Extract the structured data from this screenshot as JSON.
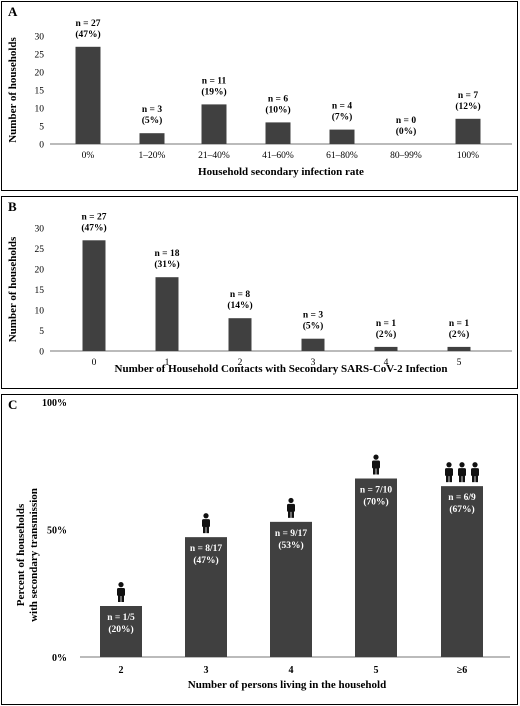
{
  "panels": [
    {
      "label": "A"
    },
    {
      "label": "B"
    },
    {
      "label": "C"
    }
  ],
  "chart_data": [
    {
      "type": "bar",
      "panel": "A",
      "categories": [
        "0%",
        "1–20%",
        "21–40%",
        "41–60%",
        "61–80%",
        "80–99%",
        "100%"
      ],
      "values": [
        27,
        3,
        11,
        6,
        4,
        0,
        7
      ],
      "data_labels": [
        [
          "n = 27",
          "(47%)"
        ],
        [
          "n = 3",
          "(5%)"
        ],
        [
          "n = 11",
          "(19%)"
        ],
        [
          "n = 6",
          "(10%)"
        ],
        [
          "n = 4",
          "(7%)"
        ],
        [
          "n = 0",
          "(0%)"
        ],
        [
          "n = 7",
          "(12%)"
        ]
      ],
      "xlabel": "Household secondary infection rate",
      "ylabel": "Number of households",
      "ylim": [
        0,
        30
      ],
      "yticks": [
        0,
        5,
        10,
        15,
        20,
        25,
        30
      ],
      "bar_color": "#404040"
    },
    {
      "type": "bar",
      "panel": "B",
      "categories": [
        "0",
        "1",
        "2",
        "3",
        "4",
        "5"
      ],
      "values": [
        27,
        18,
        8,
        3,
        1,
        1
      ],
      "data_labels": [
        [
          "n = 27",
          "(47%)"
        ],
        [
          "n = 18",
          "(31%)"
        ],
        [
          "n = 8",
          "(14%)"
        ],
        [
          "n = 3",
          "(5%)"
        ],
        [
          "n = 1",
          "(2%)"
        ],
        [
          "n = 1",
          "(2%)"
        ]
      ],
      "xlabel": "Number of Household Contacts with Secondary SARS-CoV-2 Infection",
      "ylabel": "Number of households",
      "ylim": [
        0,
        30
      ],
      "yticks": [
        0,
        5,
        10,
        15,
        20,
        25,
        30
      ],
      "bar_color": "#404040"
    },
    {
      "type": "bar",
      "panel": "C",
      "categories": [
        "2",
        "3",
        "4",
        "5",
        "≥6"
      ],
      "values": [
        20,
        47,
        53,
        70,
        67
      ],
      "data_labels": [
        [
          "n = 1/5",
          "(20%)"
        ],
        [
          "n = 8/17",
          "(47%)"
        ],
        [
          "n = 9/17",
          "(53%)"
        ],
        [
          "n = 7/10",
          "(70%)"
        ],
        [
          "n = 6/9",
          "(67%)"
        ]
      ],
      "person_icons": [
        1,
        1,
        1,
        1,
        3
      ],
      "xlabel": "Number of persons living in the household",
      "ylabel": [
        "Percent of households",
        "with secondary transmission"
      ],
      "ylim": [
        0,
        100
      ],
      "yticks": [
        "0%",
        "50%",
        "100%"
      ],
      "ytick_values": [
        0,
        50,
        100
      ],
      "bar_color": "#404040"
    }
  ]
}
